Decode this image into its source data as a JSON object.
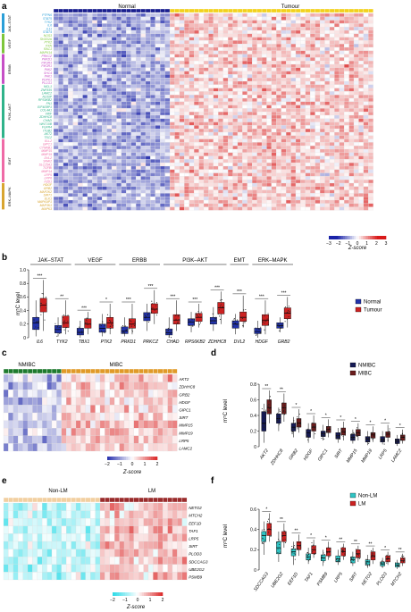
{
  "colors": {
    "normal_bar": "#1a1f8f",
    "tumour_bar": "#f2d21b",
    "normal_box": "#2233aa",
    "tumour_box": "#cc2222",
    "nmibc_bar": "#1e7a2e",
    "mibc_bar": "#e09a28",
    "nmibc_box": "#151a55",
    "mibc_box": "#6b1c1c",
    "nonlm_bar": "#f2cfa0",
    "lm_bar": "#9a2b2b",
    "nonlm_box": "#2fc4c4",
    "lm_box": "#cc2222",
    "heat_low": "#1a23a8",
    "heat_high": "#d91a1a",
    "heat_mid": "#ffffff",
    "cyan_low": "#1cd9e6",
    "grp_jak": "#2b9fd8",
    "grp_vegf": "#7ec63b",
    "grp_erbb": "#c64fc6",
    "grp_pi3k": "#2fb38a",
    "grp_emt": "#ef6aa6",
    "grp_erk": "#d8a530"
  },
  "panels": {
    "a": "a",
    "b": "b",
    "c": "c",
    "d": "d",
    "e": "e",
    "f": "f"
  },
  "heatmap_a": {
    "left_label": "Normal",
    "right_label": "Tumour",
    "groups": [
      {
        "name": "JAK–STAT",
        "color_key": "grp_jak",
        "genes": [
          "PTPN6",
          "STAT5",
          "TYK2",
          "IL6",
          "IL11",
          "STAT4"
        ]
      },
      {
        "name": "VEGF",
        "color_key": "grp_vegf",
        "genes": [
          "NOS3",
          "SH2D2A",
          "PTK2",
          "PXN",
          "RAC1",
          "MAPK14"
        ]
      },
      {
        "name": "ERBB",
        "color_key": "grp_erbb",
        "genes": [
          "PRKCZ",
          "PRKD1",
          "PIK3R3",
          "PIK3R1",
          "PAK2",
          "SHC4",
          "PAK1",
          "PDPK1",
          "PLCG1"
        ]
      },
      {
        "name": "PI3K–AKT",
        "color_key": "grp_pi3k",
        "genes": [
          "MCL1",
          "ZNF835",
          "LAMC2",
          "NOSIP",
          "RPS6KB2",
          "FN1",
          "EIF4EBP1",
          "COL4A1",
          "VWF",
          "ZDHHC8",
          "CHAD",
          "WNT10B",
          "FGFR4",
          "ITGB2",
          "AKT2",
          "TSC2"
        ]
      },
      {
        "name": "EMT",
        "color_key": "grp_emt",
        "genes": [
          "ELL2",
          "GIPC1",
          "CTNNB1",
          "MMP15",
          "MMP19",
          "DVL2",
          "SNAI2",
          "SLC25A1",
          "TGFBI",
          "MMP14",
          "LRP5",
          "LRP6",
          "FZD1"
        ]
      },
      {
        "name": "ERK–MAPK",
        "color_key": "grp_erk",
        "genes": [
          "HDGF",
          "GRB2",
          "MAP2K2",
          "SIRT1",
          "ELK1",
          "MAPKAP1",
          "MAP3K1",
          "MAPK3"
        ]
      }
    ],
    "n_normal": 24,
    "n_tumour": 42,
    "legend_ticks": [
      "−3",
      "−2",
      "−1",
      "0",
      "1",
      "2",
      "3"
    ],
    "legend_label": "Z-score"
  },
  "chart_b": {
    "type": "box",
    "ylabel": "m⁵C level",
    "ylim": [
      0,
      1.0
    ],
    "yticks": [
      "0",
      "0.2",
      "0.4",
      "0.6",
      "0.8",
      "1.0"
    ],
    "groups": [
      {
        "name": "JAK–STAT",
        "genes": [
          "IL6",
          "TYK2"
        ]
      },
      {
        "name": "VEGF",
        "genes": [
          "TBX1",
          "PTK2"
        ]
      },
      {
        "name": "ERBB",
        "genes": [
          "PRKD1",
          "PRKCZ"
        ]
      },
      {
        "name": "PI3K–AKT",
        "genes": [
          "CHAD",
          "RPS6KB2",
          "ZDHHC8"
        ]
      },
      {
        "name": "EMT",
        "genes": [
          "DVL2"
        ]
      },
      {
        "name": "ERK–MAPK",
        "genes": [
          "HDGF",
          "GRB2"
        ]
      }
    ],
    "genes": [
      "IL6",
      "TYK2",
      "TBX1",
      "PTK2",
      "PRKD1",
      "PRKCZ",
      "CHAD",
      "RPS6KB2",
      "ZDHHC8",
      "DVL2",
      "HDGF",
      "GRB2"
    ],
    "significance": [
      "***",
      "**",
      "***",
      "*",
      "***",
      "***",
      "***",
      "***",
      "***",
      "***",
      "***",
      "***"
    ],
    "series": [
      {
        "name": "Normal",
        "stats": [
          [
            0.02,
            0.12,
            0.22,
            0.3,
            0.55
          ],
          [
            0.02,
            0.07,
            0.12,
            0.18,
            0.3
          ],
          [
            0.0,
            0.04,
            0.08,
            0.14,
            0.25
          ],
          [
            0.02,
            0.08,
            0.14,
            0.2,
            0.35
          ],
          [
            0.02,
            0.06,
            0.1,
            0.16,
            0.3
          ],
          [
            0.1,
            0.25,
            0.3,
            0.37,
            0.5
          ],
          [
            0.0,
            0.04,
            0.07,
            0.13,
            0.3
          ],
          [
            0.08,
            0.18,
            0.23,
            0.28,
            0.38
          ],
          [
            0.1,
            0.2,
            0.25,
            0.3,
            0.45
          ],
          [
            0.05,
            0.14,
            0.2,
            0.25,
            0.35
          ],
          [
            0.0,
            0.06,
            0.09,
            0.14,
            0.25
          ],
          [
            0.08,
            0.14,
            0.18,
            0.22,
            0.3
          ]
        ]
      },
      {
        "name": "Tumour",
        "stats": [
          [
            0.1,
            0.38,
            0.48,
            0.58,
            0.85
          ],
          [
            0.05,
            0.15,
            0.22,
            0.32,
            0.55
          ],
          [
            0.05,
            0.14,
            0.2,
            0.28,
            0.38
          ],
          [
            0.05,
            0.14,
            0.22,
            0.3,
            0.5
          ],
          [
            0.05,
            0.14,
            0.2,
            0.28,
            0.5
          ],
          [
            0.2,
            0.36,
            0.42,
            0.5,
            0.7
          ],
          [
            0.1,
            0.2,
            0.26,
            0.34,
            0.55
          ],
          [
            0.15,
            0.24,
            0.3,
            0.36,
            0.5
          ],
          [
            0.2,
            0.35,
            0.44,
            0.52,
            0.68
          ],
          [
            0.15,
            0.24,
            0.3,
            0.38,
            0.62
          ],
          [
            0.05,
            0.18,
            0.26,
            0.34,
            0.55
          ],
          [
            0.15,
            0.28,
            0.36,
            0.44,
            0.6
          ]
        ]
      }
    ],
    "legend": [
      "Normal",
      "Tumour"
    ]
  },
  "heatmap_c": {
    "left_label": "NMIBC",
    "right_label": "MIBC",
    "genes": [
      "AKT2",
      "ZDHHC8",
      "GRB2",
      "HDGF",
      "GIPC1",
      "SIRT",
      "MMP15",
      "MMP19",
      "LRP5",
      "LAMC2"
    ],
    "n_left": 12,
    "n_right": 24,
    "legend_ticks": [
      "−2",
      "−1",
      "0",
      "1",
      "2"
    ],
    "legend_label": "Z-score"
  },
  "chart_d": {
    "type": "box",
    "ylabel": "m⁵C level",
    "yticks": [
      "0",
      "0.2",
      "0.4",
      "0.6",
      "0.8"
    ],
    "ylim": [
      0,
      0.8
    ],
    "genes": [
      "AKT2",
      "ZDHHC8",
      "GRB2",
      "HDGF",
      "GIPC1",
      "SIRT",
      "MMP15",
      "MMP19",
      "LRP5",
      "LAMC2"
    ],
    "significance": [
      "**",
      "**",
      "*",
      "*",
      "*",
      "*",
      "*",
      "*",
      "*",
      "*"
    ],
    "series": [
      {
        "name": "NMIBC",
        "stats": [
          [
            0.05,
            0.2,
            0.3,
            0.45,
            0.55
          ],
          [
            0.2,
            0.3,
            0.36,
            0.42,
            0.5
          ],
          [
            0.12,
            0.2,
            0.25,
            0.3,
            0.38
          ],
          [
            0.05,
            0.12,
            0.18,
            0.22,
            0.3
          ],
          [
            0.08,
            0.13,
            0.17,
            0.2,
            0.28
          ],
          [
            0.05,
            0.1,
            0.14,
            0.18,
            0.24
          ],
          [
            0.04,
            0.08,
            0.12,
            0.16,
            0.22
          ],
          [
            0.02,
            0.06,
            0.1,
            0.13,
            0.2
          ],
          [
            0.03,
            0.06,
            0.09,
            0.13,
            0.2
          ],
          [
            0.01,
            0.04,
            0.07,
            0.1,
            0.15
          ]
        ]
      },
      {
        "name": "MIBC",
        "stats": [
          [
            0.3,
            0.42,
            0.5,
            0.6,
            0.72
          ],
          [
            0.32,
            0.42,
            0.5,
            0.56,
            0.68
          ],
          [
            0.18,
            0.25,
            0.3,
            0.36,
            0.48
          ],
          [
            0.1,
            0.2,
            0.25,
            0.3,
            0.4
          ],
          [
            0.12,
            0.18,
            0.22,
            0.26,
            0.35
          ],
          [
            0.08,
            0.15,
            0.19,
            0.24,
            0.32
          ],
          [
            0.08,
            0.14,
            0.18,
            0.22,
            0.3
          ],
          [
            0.06,
            0.11,
            0.15,
            0.18,
            0.26
          ],
          [
            0.06,
            0.12,
            0.16,
            0.19,
            0.28
          ],
          [
            0.04,
            0.08,
            0.12,
            0.15,
            0.22
          ]
        ]
      }
    ],
    "legend": [
      "NMIBC",
      "MIBC"
    ]
  },
  "heatmap_e": {
    "left_label": "Non-LM",
    "right_label": "LM",
    "genes": [
      "NETO2",
      "MTCH2",
      "EEF1D",
      "TAF1",
      "LRP5",
      "SIRT",
      "PLOD3",
      "SDCCAG3",
      "UBE2G2",
      "PSMB9"
    ],
    "n_left": 20,
    "n_right": 18,
    "legend_ticks": [
      "−2",
      "−1",
      "0",
      "1",
      "2"
    ],
    "legend_label": "Z-score"
  },
  "chart_f": {
    "type": "box",
    "ylabel": "m⁵C level",
    "yticks": [
      "0",
      "0.2",
      "0.4",
      "0.6"
    ],
    "ylim": [
      0,
      0.6
    ],
    "genes": [
      "SDCCAG3",
      "UBE2G2",
      "EEF1D",
      "TAF1",
      "PSMB9",
      "LRP5",
      "SIRT",
      "NETO2",
      "PLOD3",
      "MTCH2"
    ],
    "significance": [
      "*",
      "**",
      "**",
      "*",
      "*",
      "**",
      "**",
      "**",
      "*",
      "**"
    ],
    "series": [
      {
        "name": "Non-LM",
        "stats": [
          [
            0.15,
            0.28,
            0.34,
            0.38,
            0.48
          ],
          [
            0.08,
            0.16,
            0.22,
            0.28,
            0.38
          ],
          [
            0.05,
            0.14,
            0.18,
            0.21,
            0.28
          ],
          [
            0.06,
            0.1,
            0.13,
            0.16,
            0.22
          ],
          [
            0.04,
            0.09,
            0.12,
            0.15,
            0.2
          ],
          [
            0.05,
            0.08,
            0.11,
            0.14,
            0.2
          ],
          [
            0.04,
            0.07,
            0.1,
            0.13,
            0.18
          ],
          [
            0.02,
            0.05,
            0.08,
            0.1,
            0.15
          ],
          [
            0.02,
            0.04,
            0.06,
            0.08,
            0.12
          ],
          [
            0.01,
            0.03,
            0.05,
            0.07,
            0.1
          ]
        ]
      },
      {
        "name": "LM",
        "stats": [
          [
            0.28,
            0.34,
            0.4,
            0.46,
            0.56
          ],
          [
            0.22,
            0.28,
            0.34,
            0.38,
            0.46
          ],
          [
            0.14,
            0.2,
            0.24,
            0.28,
            0.35
          ],
          [
            0.12,
            0.16,
            0.2,
            0.24,
            0.3
          ],
          [
            0.1,
            0.14,
            0.18,
            0.22,
            0.28
          ],
          [
            0.1,
            0.14,
            0.18,
            0.22,
            0.26
          ],
          [
            0.08,
            0.12,
            0.16,
            0.2,
            0.24
          ],
          [
            0.06,
            0.1,
            0.14,
            0.18,
            0.22
          ],
          [
            0.05,
            0.08,
            0.11,
            0.14,
            0.18
          ],
          [
            0.04,
            0.07,
            0.09,
            0.12,
            0.16
          ]
        ]
      }
    ],
    "legend": [
      "Non-LM",
      "LM"
    ]
  },
  "chart_data": [
    {
      "type": "heatmap",
      "title": "",
      "groups": [
        "Normal",
        "Tumour"
      ]
    },
    {
      "type": "box",
      "title": "",
      "ylabel": "m⁵C level",
      "categories": [
        "IL6",
        "TYK2",
        "TBX1",
        "PTK2",
        "PRKD1",
        "PRKCZ",
        "CHAD",
        "RPS6KB2",
        "ZDHHC8",
        "DVL2",
        "HDGF",
        "GRB2"
      ],
      "series": [
        {
          "name": "Normal",
          "values": [
            0.22,
            0.12,
            0.08,
            0.14,
            0.1,
            0.3,
            0.07,
            0.23,
            0.25,
            0.2,
            0.09,
            0.18
          ]
        },
        {
          "name": "Tumour",
          "values": [
            0.48,
            0.22,
            0.2,
            0.22,
            0.2,
            0.42,
            0.26,
            0.3,
            0.44,
            0.3,
            0.26,
            0.36
          ]
        }
      ],
      "ylim": [
        0,
        1.0
      ]
    },
    {
      "type": "heatmap",
      "title": "",
      "groups": [
        "NMIBC",
        "MIBC"
      ]
    },
    {
      "type": "box",
      "title": "",
      "ylabel": "m⁵C level",
      "categories": [
        "AKT2",
        "ZDHHC8",
        "GRB2",
        "HDGF",
        "GIPC1",
        "SIRT",
        "MMP15",
        "MMP19",
        "LRP5",
        "LAMC2"
      ],
      "series": [
        {
          "name": "NMIBC",
          "values": [
            0.3,
            0.36,
            0.25,
            0.18,
            0.17,
            0.14,
            0.12,
            0.1,
            0.09,
            0.07
          ]
        },
        {
          "name": "MIBC",
          "values": [
            0.5,
            0.5,
            0.3,
            0.25,
            0.22,
            0.19,
            0.18,
            0.15,
            0.16,
            0.12
          ]
        }
      ],
      "ylim": [
        0,
        0.8
      ]
    },
    {
      "type": "heatmap",
      "title": "",
      "groups": [
        "Non-LM",
        "LM"
      ]
    },
    {
      "type": "box",
      "title": "",
      "ylabel": "m⁵C level",
      "categories": [
        "SDCCAG3",
        "UBE2G2",
        "EEF1D",
        "TAF1",
        "PSMB9",
        "LRP5",
        "SIRT",
        "NETO2",
        "PLOD3",
        "MTCH2"
      ],
      "series": [
        {
          "name": "Non-LM",
          "values": [
            0.34,
            0.22,
            0.18,
            0.13,
            0.12,
            0.11,
            0.1,
            0.08,
            0.06,
            0.05
          ]
        },
        {
          "name": "LM",
          "values": [
            0.4,
            0.34,
            0.24,
            0.2,
            0.18,
            0.18,
            0.16,
            0.14,
            0.11,
            0.09
          ]
        }
      ],
      "ylim": [
        0,
        0.6
      ]
    }
  ]
}
